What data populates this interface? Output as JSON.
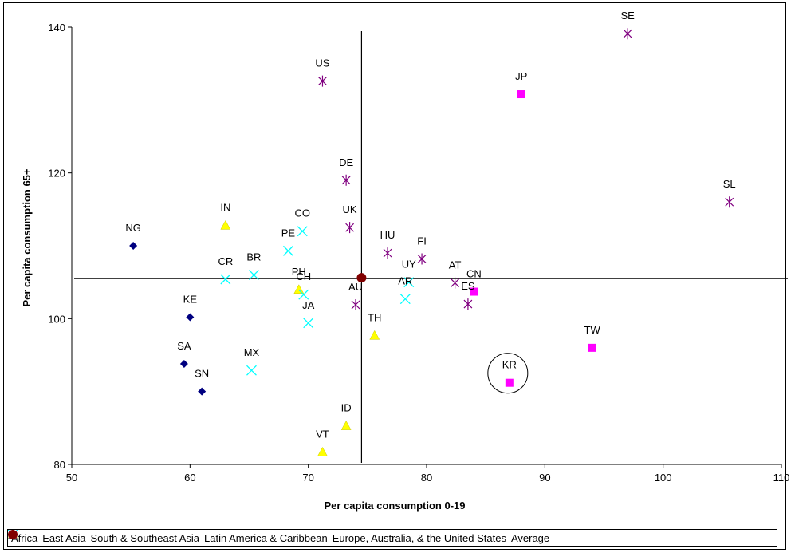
{
  "chart_data": {
    "type": "scatter",
    "xlabel": "Per capita consumption 0-19",
    "ylabel": "Per capita consumption 65+",
    "xlim": [
      50,
      110
    ],
    "ylim": [
      80,
      140
    ],
    "xticks": [
      "50",
      "60",
      "70",
      "80",
      "90",
      "100",
      "110"
    ],
    "yticks": [
      "80",
      "100",
      "120",
      "140"
    ],
    "grid": false,
    "legend_position": "bottom",
    "reference_lines": {
      "x": 74.5,
      "y": 105.5
    },
    "highlight": {
      "label": "KR",
      "shape": "circle"
    },
    "series": [
      {
        "name": "Africa",
        "marker": "diamond",
        "color": "#000080",
        "points": [
          {
            "label": "NG",
            "x": 55.2,
            "y": 110
          },
          {
            "label": "KE",
            "x": 60,
            "y": 100.2
          },
          {
            "label": "SA",
            "x": 59.5,
            "y": 93.8
          },
          {
            "label": "SN",
            "x": 61,
            "y": 90
          }
        ]
      },
      {
        "name": "East Asia",
        "marker": "square",
        "color": "#ff00ff",
        "points": [
          {
            "label": "JP",
            "x": 88,
            "y": 130.8
          },
          {
            "label": "CN",
            "x": 84,
            "y": 103.7
          },
          {
            "label": "TW",
            "x": 94,
            "y": 96
          },
          {
            "label": "KR",
            "x": 87,
            "y": 91.2
          }
        ]
      },
      {
        "name": "South & Southeast Asia",
        "marker": "triangle",
        "color": "#ffff00",
        "points": [
          {
            "label": "IN",
            "x": 63,
            "y": 112.8
          },
          {
            "label": "PH",
            "x": 69.2,
            "y": 104
          },
          {
            "label": "TH",
            "x": 75.6,
            "y": 97.7
          },
          {
            "label": "ID",
            "x": 73.2,
            "y": 85.3
          },
          {
            "label": "VT",
            "x": 71.2,
            "y": 81.7
          }
        ]
      },
      {
        "name": "Latin America & Caribbean",
        "marker": "x",
        "color": "#00ffff",
        "points": [
          {
            "label": "CO",
            "x": 69.5,
            "y": 112
          },
          {
            "label": "PE",
            "x": 68.3,
            "y": 109.3
          },
          {
            "label": "CR",
            "x": 63,
            "y": 105.4
          },
          {
            "label": "BR",
            "x": 65.4,
            "y": 106
          },
          {
            "label": "CH",
            "x": 69.6,
            "y": 103.3
          },
          {
            "label": "JA",
            "x": 70,
            "y": 99.4
          },
          {
            "label": "MX",
            "x": 65.2,
            "y": 92.9
          },
          {
            "label": "UY",
            "x": 78.5,
            "y": 105
          },
          {
            "label": "AR",
            "x": 78.2,
            "y": 102.7
          }
        ]
      },
      {
        "name": "Europe, Australia, & the United States",
        "marker": "star",
        "color": "#800080",
        "points": [
          {
            "label": "SE",
            "x": 97,
            "y": 139.1
          },
          {
            "label": "US",
            "x": 71.2,
            "y": 132.6
          },
          {
            "label": "DE",
            "x": 73.2,
            "y": 119
          },
          {
            "label": "UK",
            "x": 73.5,
            "y": 112.5
          },
          {
            "label": "SL",
            "x": 105.6,
            "y": 116
          },
          {
            "label": "HU",
            "x": 76.7,
            "y": 109
          },
          {
            "label": "FI",
            "x": 79.6,
            "y": 108.2
          },
          {
            "label": "AT",
            "x": 82.4,
            "y": 104.9
          },
          {
            "label": "ES",
            "x": 83.5,
            "y": 102
          },
          {
            "label": "AU",
            "x": 74,
            "y": 101.9
          }
        ]
      },
      {
        "name": "Average",
        "marker": "circle",
        "color": "#800000",
        "points": [
          {
            "label": "",
            "x": 74.5,
            "y": 105.6
          }
        ]
      }
    ]
  }
}
